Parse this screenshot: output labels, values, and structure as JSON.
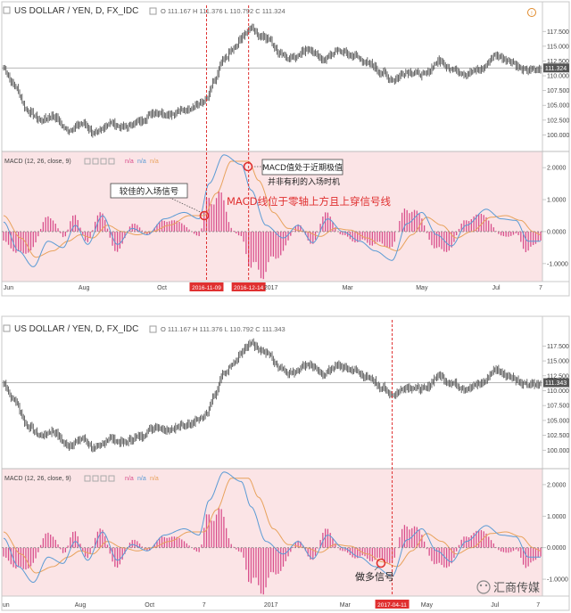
{
  "colors": {
    "price_bar": "#555555",
    "macd_line": "#5b9bd5",
    "signal_line": "#e8a25c",
    "histogram": "#d94f8c",
    "macd_zone": "#fbe4e6",
    "annotation": "#e03030",
    "last_price_label": "#555555"
  },
  "panels": [
    {
      "title": "US DOLLAR / YEN, D, FX_IDC",
      "ohlc_text": "O 111.167 H 111.376 L 110.792 C 111.324",
      "last_price": "111.324",
      "price_ticks": [
        "117.500",
        "115.000",
        "112.500",
        "110.000",
        "107.500",
        "105.000",
        "102.500",
        "100.000"
      ],
      "macd_label": "MACD (12, 26, close, 9)",
      "macd_na": [
        "n/a",
        "n/a",
        "n/a"
      ],
      "macd_ticks": [
        "2.0000",
        "1.0000",
        "0.0000",
        "-1.0000"
      ],
      "time_labels": [
        {
          "text": "Jun",
          "t": 4
        },
        {
          "text": "Aug",
          "t": 65
        },
        {
          "text": "Oct",
          "t": 128
        },
        {
          "text": "2017",
          "t": 216
        },
        {
          "text": "Mar",
          "t": 278
        },
        {
          "text": "May",
          "t": 338
        },
        {
          "text": "Jul",
          "t": 398
        },
        {
          "text": "7",
          "t": 434
        }
      ],
      "markers": [
        {
          "label": "2016-11-09",
          "t": 164
        },
        {
          "label": "2016-12-14",
          "t": 198
        }
      ],
      "annotations": {
        "entry_label": "较佳的入场信号",
        "peak_label": "MACD值处于近期极值",
        "peak_sub": "并非有利的入场时机",
        "cross_label": "MACD线位于零轴上方且上穿信号线"
      }
    },
    {
      "title": "US DOLLAR / YEN, D, FX_IDC",
      "ohlc_text": "O 111.167 H 111.376 L 110.792 C 111.343",
      "last_price": "111.343",
      "price_ticks": [
        "117.500",
        "115.000",
        "112.500",
        "110.000",
        "107.500",
        "105.000",
        "102.500",
        "100.000"
      ],
      "macd_label": "MACD (12, 26, close, 9)",
      "macd_na": [
        "n/a",
        "n/a",
        "n/a"
      ],
      "macd_ticks": [
        "2.0000",
        "1.0000",
        "0.0000",
        "-1.0000"
      ],
      "time_labels": [
        {
          "text": "un",
          "t": 2
        },
        {
          "text": "Aug",
          "t": 62
        },
        {
          "text": "Oct",
          "t": 118
        },
        {
          "text": "7",
          "t": 162
        },
        {
          "text": "2017",
          "t": 216
        },
        {
          "text": "Mar",
          "t": 276
        },
        {
          "text": "May",
          "t": 342
        },
        {
          "text": "Jul",
          "t": 397
        },
        {
          "text": "7",
          "t": 432
        }
      ],
      "markers": [
        {
          "label": "2017-04-11",
          "t": 314
        }
      ],
      "annotations": {
        "long_label": "做多信号"
      }
    }
  ],
  "watermark": "汇商传媒",
  "chart_data": [
    {
      "type": "candlestick",
      "title": "US DOLLAR / YEN, D, FX_IDC",
      "y_range": [
        97.5,
        119.5
      ],
      "x_knots": [
        0,
        8,
        20,
        30,
        40,
        52,
        64,
        74,
        86,
        96,
        110,
        122,
        134,
        146,
        158,
        164,
        170,
        178,
        186,
        194,
        200,
        206,
        214,
        222,
        232,
        246,
        258,
        270,
        282,
        296,
        306,
        314,
        326,
        340,
        352,
        362,
        374,
        386,
        398,
        410,
        420,
        434
      ],
      "close_knots": [
        111.3,
        108.5,
        104.0,
        102.5,
        103.2,
        100.8,
        101.9,
        100.2,
        102.0,
        101.3,
        102.2,
        103.9,
        103.5,
        104.2,
        105.2,
        106.0,
        109.0,
        112.8,
        114.5,
        116.8,
        118.2,
        117.0,
        116.2,
        114.0,
        113.0,
        114.5,
        112.8,
        114.2,
        113.5,
        112.0,
        110.5,
        109.3,
        110.6,
        110.2,
        112.5,
        111.2,
        110.3,
        111.2,
        113.5,
        112.4,
        111.0,
        111.0
      ],
      "last": 111.324
    },
    {
      "type": "macd",
      "name": "MACD (12, 26, close, 9)",
      "y_range": [
        -1.45,
        2.45
      ],
      "macd_knots": [
        [
          0,
          0.3
        ],
        [
          12,
          -0.6
        ],
        [
          24,
          -1.1
        ],
        [
          36,
          -0.3
        ],
        [
          48,
          -0.5
        ],
        [
          58,
          0.2
        ],
        [
          68,
          -0.4
        ],
        [
          80,
          0.5
        ],
        [
          92,
          -0.4
        ],
        [
          104,
          0.1
        ],
        [
          116,
          -0.1
        ],
        [
          130,
          0.4
        ],
        [
          146,
          0.6
        ],
        [
          158,
          0.4
        ],
        [
          166,
          1.5
        ],
        [
          178,
          2.4
        ],
        [
          192,
          2.1
        ],
        [
          200,
          1.3
        ],
        [
          212,
          0.2
        ],
        [
          226,
          -0.2
        ],
        [
          238,
          0.2
        ],
        [
          250,
          -0.35
        ],
        [
          262,
          0.4
        ],
        [
          274,
          0.0
        ],
        [
          288,
          -0.3
        ],
        [
          300,
          -0.6
        ],
        [
          314,
          -0.9
        ],
        [
          326,
          0.25
        ],
        [
          338,
          0.6
        ],
        [
          350,
          -0.1
        ],
        [
          362,
          -0.45
        ],
        [
          374,
          0.2
        ],
        [
          390,
          0.7
        ],
        [
          402,
          0.4
        ],
        [
          414,
          0.35
        ],
        [
          424,
          -0.3
        ],
        [
          434,
          -0.3
        ]
      ],
      "signal_knots": [
        [
          0,
          0.5
        ],
        [
          14,
          -0.2
        ],
        [
          26,
          -0.8
        ],
        [
          40,
          -0.6
        ],
        [
          52,
          -0.3
        ],
        [
          62,
          -0.1
        ],
        [
          72,
          -0.2
        ],
        [
          84,
          0.2
        ],
        [
          96,
          0.0
        ],
        [
          108,
          -0.1
        ],
        [
          120,
          0.0
        ],
        [
          134,
          0.2
        ],
        [
          150,
          0.5
        ],
        [
          162,
          0.5
        ],
        [
          172,
          1.2
        ],
        [
          184,
          2.2
        ],
        [
          198,
          2.2
        ],
        [
          206,
          1.6
        ],
        [
          218,
          0.6
        ],
        [
          230,
          0.1
        ],
        [
          244,
          0.0
        ],
        [
          256,
          -0.15
        ],
        [
          268,
          0.1
        ],
        [
          280,
          0.05
        ],
        [
          294,
          -0.2
        ],
        [
          306,
          -0.45
        ],
        [
          318,
          -0.6
        ],
        [
          330,
          -0.1
        ],
        [
          342,
          0.45
        ],
        [
          354,
          0.2
        ],
        [
          366,
          -0.2
        ],
        [
          378,
          0.0
        ],
        [
          394,
          0.45
        ],
        [
          406,
          0.5
        ],
        [
          418,
          0.35
        ],
        [
          428,
          0.0
        ],
        [
          434,
          -0.1
        ]
      ]
    }
  ]
}
